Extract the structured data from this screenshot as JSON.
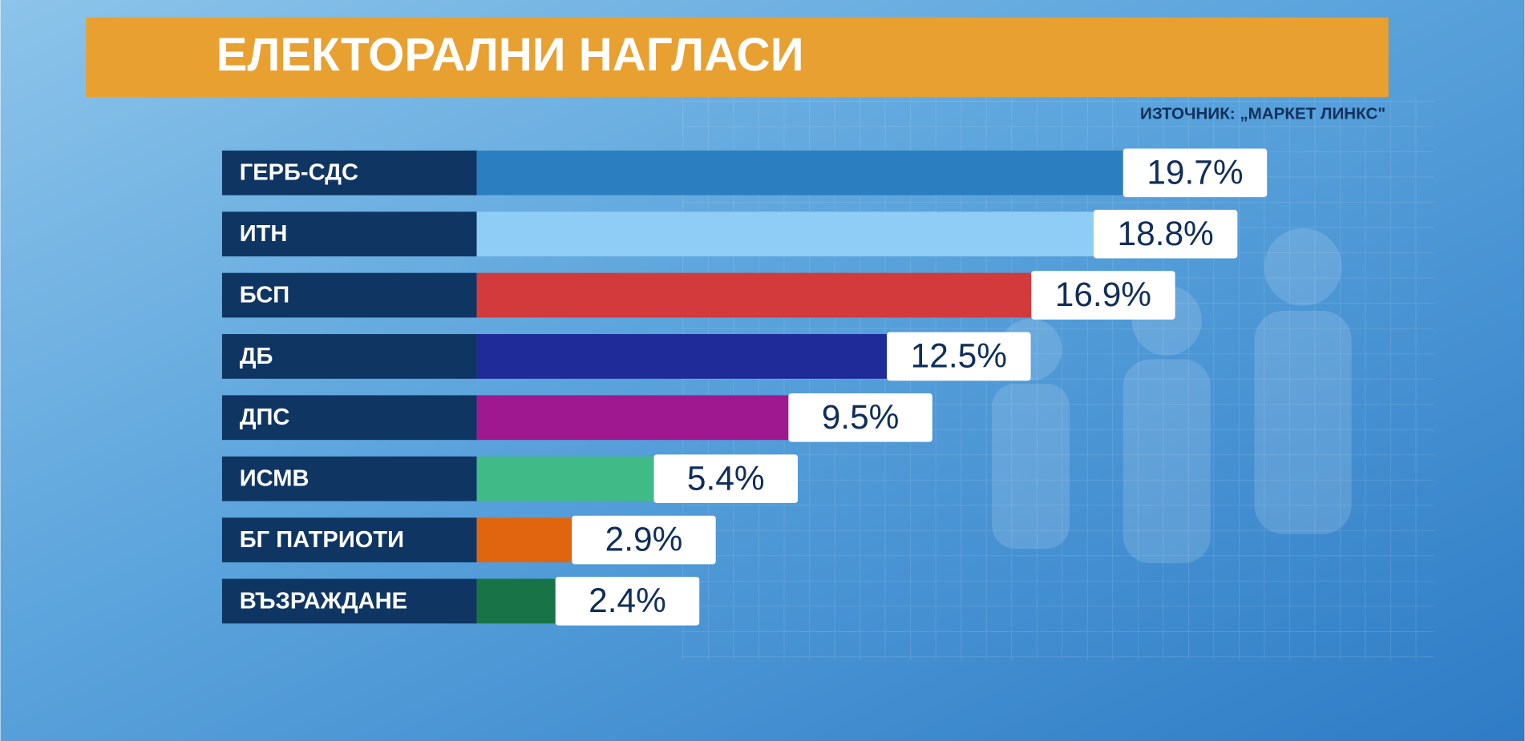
{
  "chart_data": {
    "type": "bar",
    "orientation": "horizontal",
    "title": "ЕЛЕКТОРАЛНИ НАГЛАСИ",
    "source": "ИЗТОЧНИК: „МАРКЕТ ЛИНКС\"",
    "categories": [
      "ГЕРБ-СДС",
      "ИТН",
      "БСП",
      "ДБ",
      "ДПС",
      "ИСМВ",
      "БГ ПАТРИОТИ",
      "ВЪЗРАЖДАНЕ"
    ],
    "values": [
      19.7,
      18.8,
      16.9,
      12.5,
      9.5,
      5.4,
      2.9,
      2.4
    ],
    "value_labels": [
      "19.7%",
      "18.8%",
      "16.9%",
      "12.5%",
      "9.5%",
      "5.4%",
      "2.9%",
      "2.4%"
    ],
    "colors": [
      "#2b7fc1",
      "#8fcdf6",
      "#d33a3c",
      "#1e2b98",
      "#a0188f",
      "#40bb88",
      "#e1650f",
      "#187447"
    ]
  }
}
